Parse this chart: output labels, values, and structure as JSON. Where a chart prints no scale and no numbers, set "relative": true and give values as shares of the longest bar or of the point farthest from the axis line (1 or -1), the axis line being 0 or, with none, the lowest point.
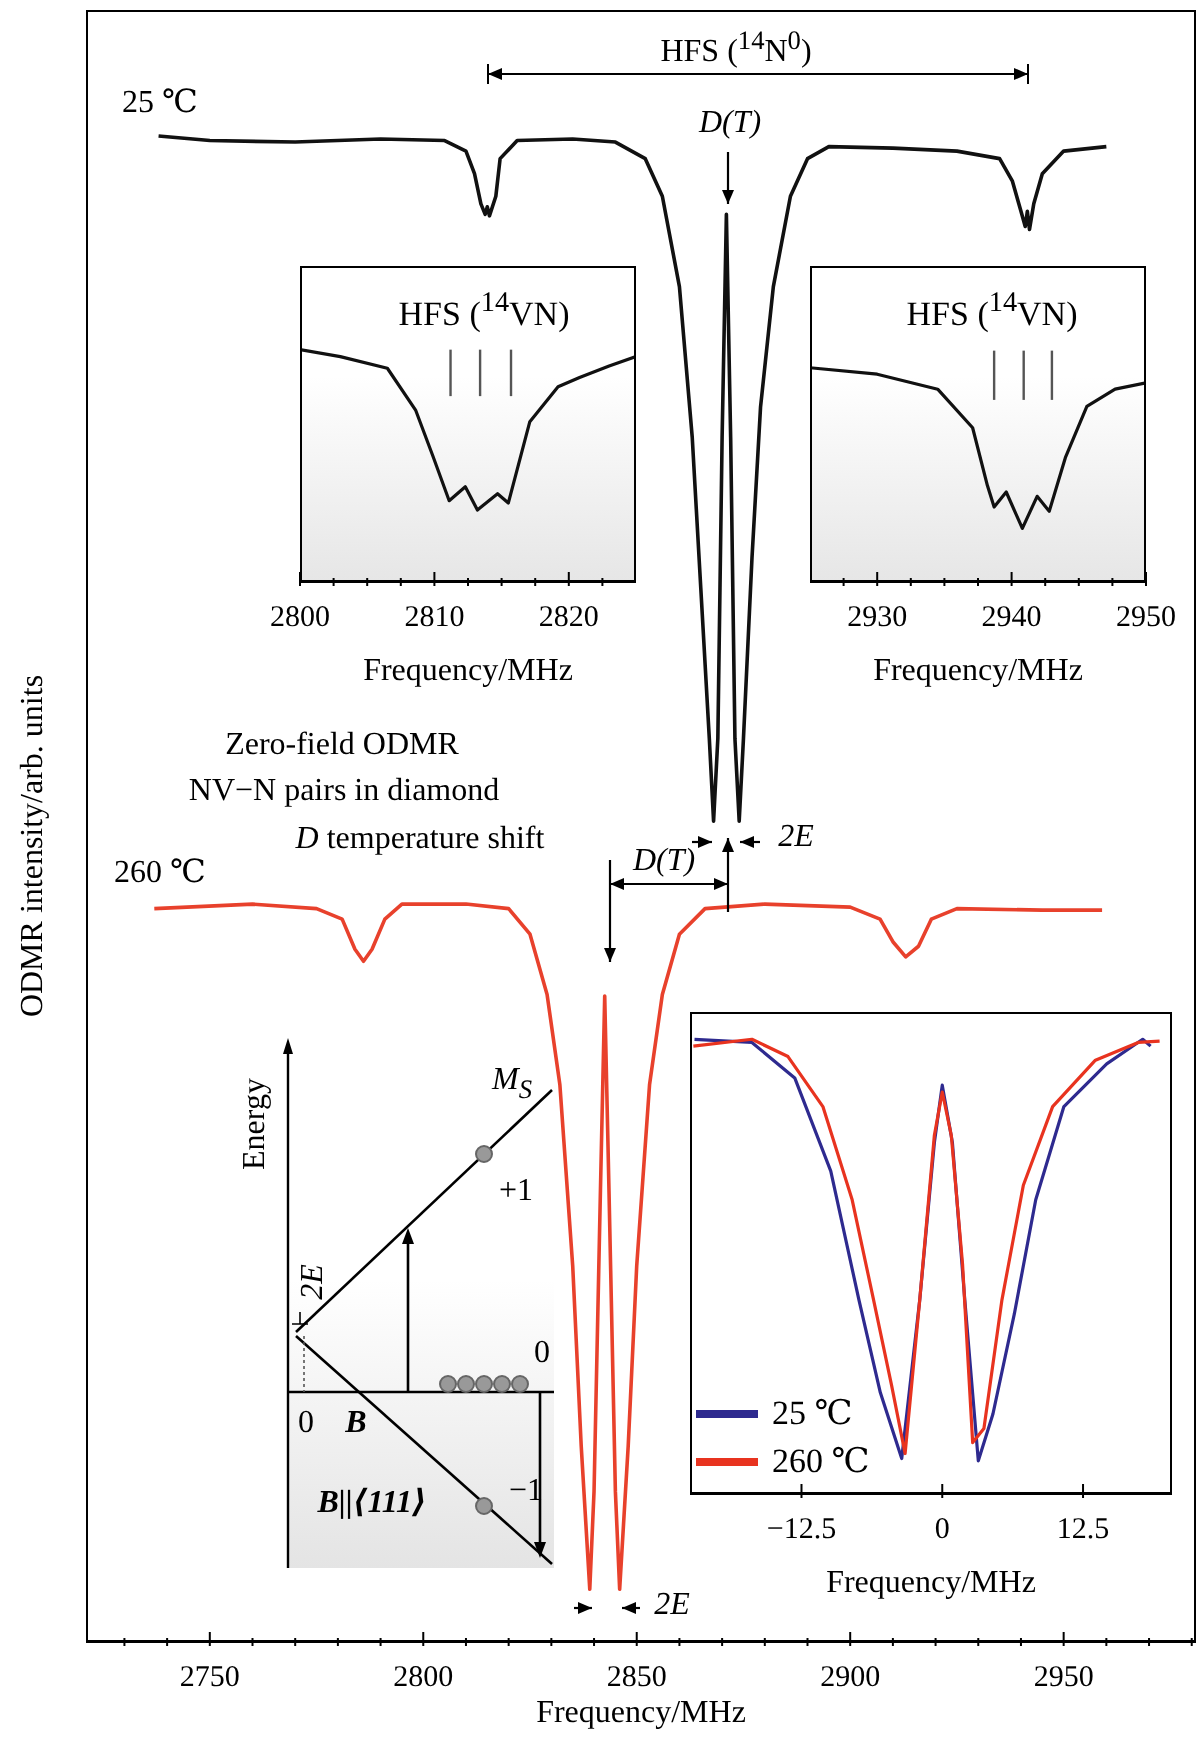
{
  "chart_data": [
    {
      "type": "line",
      "relative": true,
      "xlabel": "Frequency/MHz",
      "ylabel": "ODMR intensity/arb. units",
      "xlim": [
        2721,
        2981
      ],
      "xticks": [
        {
          "value": 2730,
          "label": null
        },
        {
          "value": 2740,
          "label": null
        },
        2750,
        {
          "value": 2760,
          "label": null
        },
        {
          "value": 2770,
          "label": null
        },
        {
          "value": 2780,
          "label": null
        },
        {
          "value": 2790,
          "label": null
        },
        2800,
        {
          "value": 2810,
          "label": null
        },
        {
          "value": 2820,
          "label": null
        },
        {
          "value": 2830,
          "label": null
        },
        {
          "value": 2840,
          "label": null
        },
        2850,
        {
          "value": 2860,
          "label": null
        },
        {
          "value": 2870,
          "label": null
        },
        {
          "value": 2880,
          "label": null
        },
        {
          "value": 2890,
          "label": null
        },
        2900,
        {
          "value": 2910,
          "label": null
        },
        {
          "value": 2920,
          "label": null
        },
        {
          "value": 2930,
          "label": null
        },
        {
          "value": 2940,
          "label": null
        },
        2950,
        {
          "value": 2960,
          "label": null
        },
        {
          "value": 2970,
          "label": null
        },
        {
          "value": 2980,
          "label": null
        }
      ],
      "series": [
        {
          "color": "#111111",
          "x": [
            2738,
            2750,
            2770,
            2790,
            2805,
            2810,
            2812,
            2813.5,
            2814.5,
            2815,
            2815.5,
            2817,
            2818,
            2822,
            2835,
            2845,
            2852,
            2856,
            2860,
            2863,
            2865,
            2867,
            2868,
            2869,
            2870,
            2871,
            2872,
            2873,
            2874,
            2875,
            2877,
            2879,
            2882,
            2886,
            2890,
            2895,
            2910,
            2925,
            2935,
            2938,
            2940,
            2941,
            2941.5,
            2942,
            2943,
            2945,
            2950,
            2960
          ],
          "values": [
            1,
            0.997,
            0.996,
            0.998,
            0.997,
            0.99,
            0.975,
            0.955,
            0.948,
            0.953,
            0.947,
            0.96,
            0.985,
            0.997,
            0.998,
            0.996,
            0.985,
            0.96,
            0.9,
            0.8,
            0.7,
            0.6,
            0.545,
            0.6,
            0.8,
            0.948,
            0.8,
            0.6,
            0.545,
            0.6,
            0.72,
            0.82,
            0.9,
            0.96,
            0.985,
            0.993,
            0.992,
            0.99,
            0.985,
            0.97,
            0.95,
            0.94,
            0.95,
            0.938,
            0.955,
            0.975,
            0.99,
            0.993
          ]
        },
        {
          "color": "#e8412c",
          "x": [
            2737,
            2760,
            2775,
            2781,
            2784,
            2786,
            2788,
            2791,
            2795,
            2810,
            2820,
            2825,
            2829,
            2832,
            2835,
            2837,
            2839,
            2840,
            2841.5,
            2842.5,
            2843.5,
            2845,
            2846,
            2848,
            2850,
            2853,
            2856,
            2860,
            2866,
            2880,
            2900,
            2907,
            2910,
            2913,
            2916,
            2919,
            2925,
            2945,
            2959
          ],
          "values": [
            0.487,
            0.49,
            0.487,
            0.48,
            0.46,
            0.452,
            0.46,
            0.48,
            0.49,
            0.49,
            0.487,
            0.47,
            0.43,
            0.37,
            0.25,
            0.13,
            0.035,
            0.1,
            0.3,
            0.429,
            0.3,
            0.1,
            0.035,
            0.13,
            0.25,
            0.37,
            0.43,
            0.47,
            0.487,
            0.49,
            0.488,
            0.48,
            0.465,
            0.455,
            0.462,
            0.48,
            0.487,
            0.486,
            0.486
          ]
        }
      ],
      "annotations": [
        "HFS ($^{14}$N$^{0}$)",
        "25 ℃",
        "D(T)",
        "Zero-field ODMR",
        "NV−N pairs in diamond",
        "D temperature shift",
        "2E",
        "260 ℃",
        "D(T)",
        "2E"
      ]
    },
    {
      "type": "line",
      "relative": true,
      "title": "HFS ($^{14}$VN)",
      "xlabel": "Frequency/MHz",
      "xlim": [
        2800,
        2825
      ],
      "xticks": [
        2800,
        {
          "value": 2802.5,
          "label": null
        },
        {
          "value": 2805,
          "label": null
        },
        {
          "value": 2807.5,
          "label": null
        },
        2810,
        {
          "value": 2812.5,
          "label": null
        },
        {
          "value": 2815,
          "label": null
        },
        {
          "value": 2817.5,
          "label": null
        },
        2820,
        {
          "value": 2822.5,
          "label": null
        }
      ],
      "series": [
        {
          "color": "#111111",
          "x": [
            2800,
            2803,
            2806.5,
            2808.6,
            2809.9,
            2811.1,
            2812.3,
            2813.2,
            2814.7,
            2815.5,
            2817.1,
            2819.2,
            2820.8,
            2823,
            2825
          ],
          "values": [
            1,
            0.97,
            0.92,
            0.74,
            0.54,
            0.35,
            0.41,
            0.31,
            0.38,
            0.34,
            0.69,
            0.84,
            0.88,
            0.93,
            0.97
          ]
        }
      ],
      "ref_lines": [
        {
          "axis": "x",
          "value": 2811.2,
          "color": "#555555"
        },
        {
          "axis": "x",
          "value": 2813.4,
          "color": "#555555"
        },
        {
          "axis": "x",
          "value": 2815.7,
          "color": "#555555"
        }
      ]
    },
    {
      "type": "line",
      "relative": true,
      "title": "HFS ($^{14}$VN)",
      "xlabel": "Frequency/MHz",
      "xlim": [
        2925,
        2950
      ],
      "xticks": [
        {
          "value": 2927.5,
          "label": null
        },
        2930,
        {
          "value": 2932.5,
          "label": null
        },
        {
          "value": 2935,
          "label": null
        },
        {
          "value": 2937.5,
          "label": null
        },
        2940,
        {
          "value": 2942.5,
          "label": null
        },
        {
          "value": 2945,
          "label": null
        },
        {
          "value": 2947.5,
          "label": null
        },
        2950
      ],
      "series": [
        {
          "color": "#111111",
          "x": [
            2925,
            2930,
            2934.5,
            2937.1,
            2938.2,
            2938.7,
            2939.6,
            2940.8,
            2941.9,
            2942.8,
            2944,
            2945.6,
            2947.7,
            2950
          ],
          "values": [
            1,
            0.97,
            0.9,
            0.72,
            0.45,
            0.35,
            0.42,
            0.25,
            0.4,
            0.33,
            0.58,
            0.82,
            0.9,
            0.93
          ]
        }
      ],
      "ref_lines": [
        {
          "axis": "x",
          "value": 2938.7,
          "color": "#555555"
        },
        {
          "axis": "x",
          "value": 2940.9,
          "color": "#555555"
        },
        {
          "axis": "x",
          "value": 2943,
          "color": "#555555"
        }
      ]
    },
    {
      "type": "line",
      "relative": true,
      "xlabel": "Frequency/MHz",
      "xlim": [
        -22.4,
        20.4
      ],
      "xticks": [
        {
          "value": -12.5,
          "label": "−12.5"
        },
        0,
        12.5
      ],
      "legend": "bottom left",
      "series": [
        {
          "name": "25 ℃",
          "color": "#2e2a8f",
          "x": [
            -22,
            -16.9,
            -13.1,
            -9.9,
            -7.4,
            -5.5,
            -3.6,
            -2,
            -0.7,
            0,
            0.9,
            2,
            3.2,
            4.5,
            6.4,
            8.3,
            10.8,
            14.6,
            17.8,
            18.5
          ],
          "values": [
            1,
            0.993,
            0.915,
            0.71,
            0.427,
            0.223,
            0.078,
            0.427,
            0.773,
            0.899,
            0.773,
            0.427,
            0.073,
            0.176,
            0.396,
            0.647,
            0.852,
            0.946,
            1,
            0.985
          ]
        },
        {
          "name": "260 ℃",
          "color": "#e8331f",
          "x": [
            -22.1,
            -16.9,
            -13.7,
            -10.6,
            -8,
            -6.1,
            -4.5,
            -3.3,
            -2,
            -0.7,
            0,
            0.8,
            1.8,
            2.7,
            3.7,
            5.3,
            7.2,
            9.8,
            13.6,
            17.4,
            19.3
          ],
          "values": [
            0.985,
            1,
            0.962,
            0.852,
            0.647,
            0.427,
            0.239,
            0.089,
            0.427,
            0.789,
            0.884,
            0.789,
            0.506,
            0.113,
            0.144,
            0.427,
            0.679,
            0.852,
            0.954,
            0.993,
            0.996
          ]
        }
      ]
    },
    {
      "type": "other",
      "annotations": [
        "Energy",
        "M$_{S}$",
        "+1",
        "0",
        "0",
        "B",
        "B||⟨111⟩",
        "−1",
        "2E"
      ]
    }
  ]
}
